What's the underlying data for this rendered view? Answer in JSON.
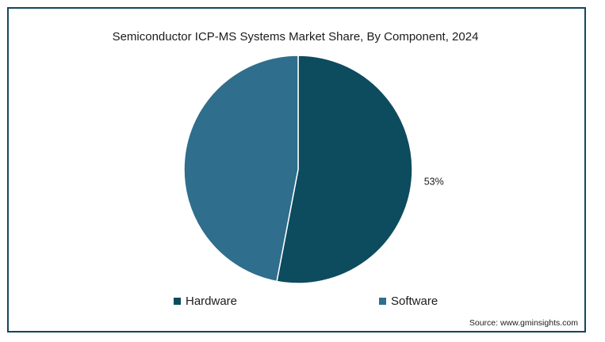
{
  "chart_data": {
    "type": "pie",
    "title": "Semiconductor ICP-MS Systems Market Share, By Component, 2024",
    "slices": [
      {
        "name": "Hardware",
        "value": 53,
        "label": "53%",
        "color": "#0d4b5f"
      },
      {
        "name": "Software",
        "value": 47,
        "label": "",
        "color": "#2f6e8c"
      }
    ],
    "legend_position": "bottom",
    "source": "Source: www.gminsights.com"
  }
}
